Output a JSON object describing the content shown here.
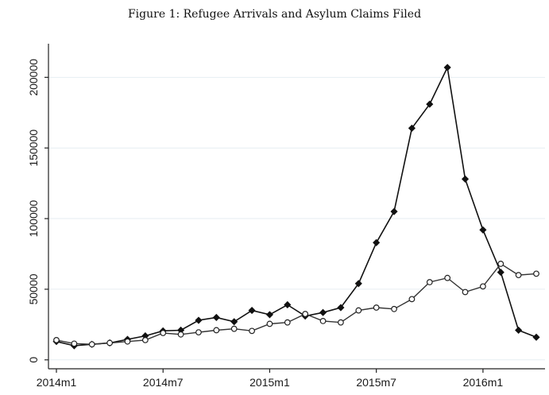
{
  "figure": {
    "caption": "Figure 1: Refugee Arrivals and Asylum Claims Filed"
  },
  "chart_data": {
    "type": "line",
    "title": "",
    "xlabel": "",
    "ylabel": "",
    "x": [
      "2014m1",
      "2014m2",
      "2014m3",
      "2014m4",
      "2014m5",
      "2014m6",
      "2014m7",
      "2014m8",
      "2014m9",
      "2014m10",
      "2014m11",
      "2014m12",
      "2015m1",
      "2015m2",
      "2015m3",
      "2015m4",
      "2015m5",
      "2015m6",
      "2015m7",
      "2015m8",
      "2015m9",
      "2015m10",
      "2015m11",
      "2015m12",
      "2016m1",
      "2016m2",
      "2016m3",
      "2016m4"
    ],
    "x_tick_labels": [
      "2014m1",
      "2014m7",
      "2015m1",
      "2015m7",
      "2016m1"
    ],
    "y_tick_labels": [
      "0",
      "50000",
      "100000",
      "150000",
      "200000"
    ],
    "y_ticks": [
      0,
      50000,
      100000,
      150000,
      200000
    ],
    "ylim": [
      -3500,
      212000
    ],
    "grid": "horizontal",
    "series": [
      {
        "marker": "diamond-filled",
        "values": [
          13000,
          10000,
          11000,
          12000,
          14500,
          17000,
          20500,
          21000,
          28000,
          30000,
          27000,
          35000,
          32000,
          39000,
          31000,
          33500,
          37000,
          54000,
          83000,
          105000,
          164000,
          181000,
          207000,
          128000,
          92000,
          62000,
          21000,
          16000
        ]
      },
      {
        "marker": "circle-hollow",
        "values": [
          14000,
          11500,
          11000,
          12000,
          13000,
          14000,
          19000,
          18000,
          19500,
          21000,
          22000,
          20500,
          25500,
          26500,
          32500,
          27500,
          26500,
          35000,
          37000,
          36000,
          43000,
          55000,
          58000,
          48000,
          52000,
          68000,
          60000,
          61000
        ]
      }
    ]
  }
}
